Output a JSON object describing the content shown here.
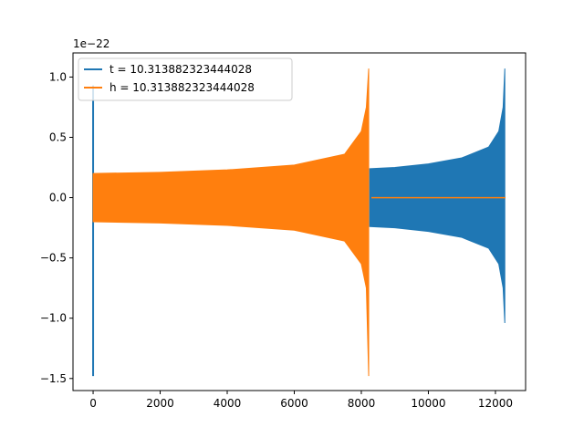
{
  "chart_data": {
    "type": "line",
    "title": "",
    "xlabel": "",
    "ylabel": "",
    "y_offset_label": "1e−22",
    "xlim": [
      -600,
      12900
    ],
    "ylim": [
      -1.6,
      1.2
    ],
    "xticks": [
      0,
      2000,
      4000,
      6000,
      8000,
      10000,
      12000
    ],
    "xtick_labels": [
      "0",
      "2000",
      "4000",
      "6000",
      "8000",
      "10000",
      "12000"
    ],
    "yticks": [
      -1.5,
      -1.0,
      -0.5,
      0.0,
      0.5,
      1.0
    ],
    "ytick_labels": [
      "−1.5",
      "−1.0",
      "−0.5",
      "0.0",
      "0.5",
      "1.0"
    ],
    "grid": false,
    "legend_position": "upper-left",
    "series": [
      {
        "name": "t = 10.313882323444028",
        "color": "#1f77b4",
        "envelope": {
          "spike": {
            "x": 0,
            "max": 0.93,
            "min": -1.48
          },
          "segments": [
            {
              "x": 8250,
              "max": 0.24,
              "min": -0.24
            },
            {
              "x": 9000,
              "max": 0.25,
              "min": -0.25
            },
            {
              "x": 10000,
              "max": 0.28,
              "min": -0.28
            },
            {
              "x": 11000,
              "max": 0.33,
              "min": -0.33
            },
            {
              "x": 11800,
              "max": 0.42,
              "min": -0.42
            },
            {
              "x": 12100,
              "max": 0.55,
              "min": -0.55
            },
            {
              "x": 12230,
              "max": 0.75,
              "min": -0.75
            },
            {
              "x": 12280,
              "max": 1.07,
              "min": -1.04
            }
          ],
          "zero_range": [
            200,
            8200
          ]
        }
      },
      {
        "name": "h = 10.313882323444028",
        "color": "#ff7f0e",
        "envelope": {
          "segments": [
            {
              "x": 0,
              "max": 0.2,
              "min": -0.2
            },
            {
              "x": 2000,
              "max": 0.21,
              "min": -0.21
            },
            {
              "x": 4000,
              "max": 0.23,
              "min": -0.23
            },
            {
              "x": 6000,
              "max": 0.27,
              "min": -0.27
            },
            {
              "x": 7500,
              "max": 0.36,
              "min": -0.36
            },
            {
              "x": 8000,
              "max": 0.55,
              "min": -0.55
            },
            {
              "x": 8150,
              "max": 0.75,
              "min": -0.75
            },
            {
              "x": 8220,
              "max": 1.07,
              "min": -1.48
            }
          ],
          "zero_range": [
            8300,
            12300
          ]
        }
      }
    ]
  }
}
